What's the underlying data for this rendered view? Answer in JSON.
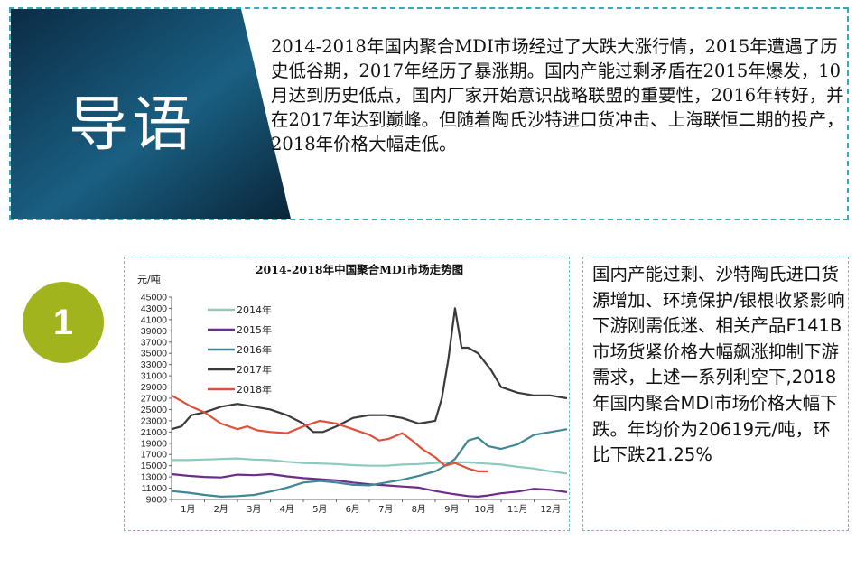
{
  "intro": {
    "title": "导语",
    "text": "2014-2018年国内聚合MDI市场经过了大跌大涨行情，2015年遭遇了历史低谷期，2017年经历了暴涨期。国内产能过剩矛盾在2015年爆发，10月达到历史低点，国内厂家开始意识战略联盟的重要性，2016年转好，并在2017年达到巅峰。但随着陶氏沙特进口货冲击、上海联恒二期的投产，2018年价格大幅走低。"
  },
  "section": {
    "number": "1"
  },
  "side_text": "国内产能过剩、沙特陶氏进口货源增加、环境保护/银根收紧影响下游刚需低迷、相关产品F141B市场货紧价格大幅飙涨抑制下游需求，上述一系列利空下,2018年国内聚合MDI市场价格大幅下跌。年均价为20619元/吨，环比下跌21.25%",
  "colors": {
    "intro_dark": "#0e3550",
    "intro_mid": "#1d6a8c",
    "accent_green": "#a1b41e",
    "dashed_border": "#3aa8b8"
  },
  "chart_data": {
    "type": "line",
    "title": "2014-2018年中国聚合MDI市场走势图",
    "ylabel": "元/吨",
    "xlabel": "",
    "categories": [
      "1月",
      "2月",
      "3月",
      "4月",
      "5月",
      "6月",
      "7月",
      "8月",
      "9月",
      "10月",
      "11月",
      "12月"
    ],
    "ylim": [
      9000,
      45000
    ],
    "yticks": [
      9000,
      11000,
      13000,
      15000,
      17000,
      19000,
      21000,
      23000,
      25000,
      27000,
      29000,
      31000,
      33000,
      35000,
      37000,
      39000,
      41000,
      43000,
      45000
    ],
    "grid": false,
    "legend_position": "upper-left",
    "series": [
      {
        "name": "2014年",
        "color": "#8ec9bd",
        "x": [
          1,
          1.5,
          2,
          2.5,
          3,
          3.5,
          4,
          4.5,
          5,
          5.5,
          6,
          6.5,
          7,
          7.5,
          8,
          8.5,
          9,
          9.5,
          10,
          10.5,
          11,
          11.5,
          12,
          12.5,
          13
        ],
        "values": [
          16000,
          16000,
          16100,
          16200,
          16300,
          16100,
          16000,
          15700,
          15500,
          15400,
          15300,
          15100,
          15000,
          15000,
          15200,
          15300,
          15500,
          15600,
          15600,
          15400,
          15200,
          14800,
          14500,
          14000,
          13600
        ]
      },
      {
        "name": "2015年",
        "color": "#6b2c8c",
        "x": [
          1,
          1.5,
          2,
          2.5,
          3,
          3.5,
          4,
          4.5,
          5,
          5.5,
          6,
          6.5,
          7,
          7.5,
          8,
          8.5,
          9,
          9.5,
          10,
          10.3,
          10.6,
          11,
          11.5,
          12,
          12.5,
          13
        ],
        "values": [
          13500,
          13200,
          13000,
          12900,
          13400,
          13300,
          13500,
          13100,
          12800,
          12600,
          12400,
          12000,
          11700,
          11500,
          11300,
          11100,
          10500,
          10000,
          9600,
          9500,
          9700,
          10100,
          10400,
          10900,
          10700,
          10300
        ]
      },
      {
        "name": "2016年",
        "color": "#3f8796",
        "x": [
          1,
          1.5,
          2,
          2.5,
          3,
          3.5,
          4,
          4.5,
          5,
          5.5,
          6,
          6.5,
          7,
          7.5,
          8,
          8.5,
          9,
          9.3,
          9.6,
          10,
          10.3,
          10.6,
          11,
          11.5,
          12,
          12.5,
          13
        ],
        "values": [
          10500,
          10200,
          9800,
          9500,
          9600,
          9800,
          10400,
          11100,
          12000,
          12300,
          12000,
          11600,
          11500,
          12000,
          12500,
          13200,
          14000,
          15000,
          16200,
          19500,
          20000,
          18500,
          18000,
          18800,
          20500,
          21000,
          21500
        ]
      },
      {
        "name": "2017年",
        "color": "#3a3a3a",
        "x": [
          1,
          1.3,
          1.6,
          2,
          2.5,
          3,
          3.5,
          4,
          4.5,
          5,
          5.3,
          5.6,
          6,
          6.5,
          7,
          7.5,
          8,
          8.5,
          9,
          9.2,
          9.4,
          9.6,
          9.8,
          10,
          10.3,
          10.7,
          11,
          11.5,
          12,
          12.5,
          13
        ],
        "values": [
          21500,
          22000,
          24000,
          24500,
          25500,
          26000,
          25500,
          25000,
          24000,
          22500,
          21000,
          21000,
          22000,
          23500,
          24000,
          24000,
          23500,
          22500,
          23000,
          27000,
          34000,
          43000,
          36000,
          36000,
          35000,
          32000,
          29000,
          28000,
          27500,
          27500,
          27000
        ]
      },
      {
        "name": "2018年",
        "color": "#e0503a",
        "x": [
          1,
          1.3,
          1.6,
          2,
          2.5,
          3,
          3.3,
          3.6,
          4,
          4.5,
          5,
          5.5,
          6,
          6.5,
          7,
          7.3,
          7.6,
          8,
          8.3,
          8.6,
          9,
          9.3,
          9.6,
          10,
          10.3,
          10.6
        ],
        "values": [
          27500,
          26500,
          25500,
          24500,
          22500,
          21500,
          22000,
          21300,
          21000,
          20800,
          22000,
          23000,
          22500,
          21500,
          20500,
          19500,
          19800,
          20800,
          19500,
          18000,
          16500,
          15000,
          15500,
          14500,
          14000,
          14000
        ]
      }
    ]
  }
}
